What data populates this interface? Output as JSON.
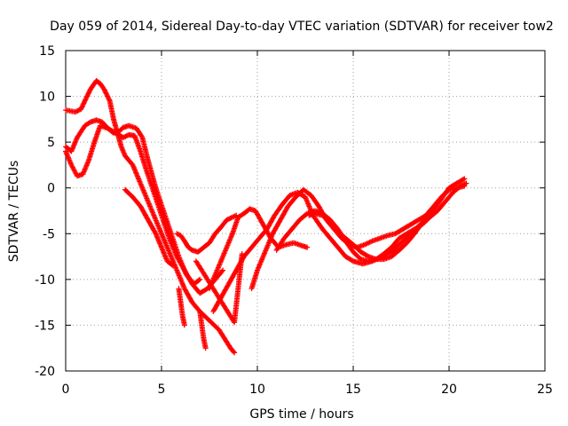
{
  "chart_data": {
    "type": "scatter",
    "title": "Day 059 of 2014, Sidereal Day-to-day VTEC variation (SDTVAR) for receiver tow2",
    "xlabel": "GPS time / hours",
    "ylabel": "SDTVAR / TECUs",
    "xlim": [
      0,
      25
    ],
    "ylim": [
      -20,
      15
    ],
    "xticks": [
      0,
      5,
      10,
      15,
      20,
      25
    ],
    "yticks": [
      15,
      10,
      5,
      0,
      -5,
      -10,
      -15,
      -20
    ],
    "grid": true,
    "marker": "plus",
    "color": "#ff0000",
    "series": [
      {
        "x": [
          0,
          0.5,
          0.8,
          1.0,
          1.3,
          1.6,
          1.8,
          2.0,
          2.3,
          2.5,
          2.7,
          2.9,
          3.1,
          3.5,
          3.8,
          4.2,
          4.6,
          5.0,
          5.4,
          5.8,
          6.2,
          6.6,
          7.0,
          7.5,
          8.0,
          8.3,
          8.6,
          8.8
        ],
        "y": [
          8.5,
          8.3,
          8.6,
          9.5,
          10.8,
          11.7,
          11.4,
          10.8,
          9.5,
          7.5,
          6.0,
          4.5,
          3.5,
          2.5,
          1.0,
          -1.0,
          -3.0,
          -5.0,
          -7.0,
          -9.0,
          -11.0,
          -12.5,
          -13.5,
          -14.5,
          -15.5,
          -16.5,
          -17.5,
          -18.0
        ]
      },
      {
        "x": [
          0,
          0.3,
          0.6,
          1.0,
          1.3,
          1.6,
          1.9,
          2.2,
          2.5,
          2.8,
          3.0,
          3.3,
          3.7,
          4.0,
          4.3,
          4.7,
          5.1,
          5.5,
          5.9,
          6.3,
          6.7,
          7.0
        ],
        "y": [
          4.5,
          4.0,
          5.5,
          6.8,
          7.2,
          7.4,
          7.2,
          6.5,
          6.0,
          6.2,
          6.6,
          6.8,
          6.5,
          5.5,
          3.0,
          0.0,
          -2.5,
          -5.0,
          -7.5,
          -9.5,
          -10.5,
          -10.0
        ]
      },
      {
        "x": [
          0,
          0.3,
          0.6,
          0.9,
          1.2,
          1.5,
          1.8,
          2.2,
          2.6,
          3.0,
          3.3,
          3.6,
          3.9,
          4.2,
          4.6,
          5.0,
          5.4,
          5.8,
          6.2,
          6.6,
          7.0,
          7.4,
          7.8,
          8.2
        ],
        "y": [
          4.0,
          2.5,
          1.3,
          1.5,
          3.0,
          5.0,
          6.8,
          6.5,
          6.0,
          5.5,
          5.8,
          5.7,
          4.0,
          2.0,
          -0.5,
          -3.0,
          -5.5,
          -7.5,
          -9.0,
          -10.5,
          -11.5,
          -11.0,
          -10.0,
          -9.0
        ]
      },
      {
        "x": [
          3.1,
          3.5,
          3.9,
          4.3,
          4.7,
          5.0,
          5.3,
          5.6
        ],
        "y": [
          -0.2,
          -1.0,
          -2.0,
          -3.5,
          -5.0,
          -6.5,
          -8.0,
          -8.5
        ]
      },
      {
        "x": [
          5.8,
          6.0,
          6.2,
          6.4,
          6.6,
          6.9,
          7.2,
          7.5,
          7.8,
          8.1,
          8.4,
          8.7,
          8.9
        ],
        "y": [
          -5.0,
          -5.2,
          -5.8,
          -6.5,
          -6.8,
          -7.0,
          -6.5,
          -6.0,
          -5.0,
          -4.3,
          -3.5,
          -3.2,
          -3.0
        ]
      },
      {
        "x": [
          5.9,
          6.0,
          6.1,
          6.2
        ],
        "y": [
          -11.0,
          -12.5,
          -14.0,
          -15.0
        ]
      },
      {
        "x": [
          7.0,
          7.1,
          7.2,
          7.3
        ],
        "y": [
          -13.5,
          -15.0,
          -16.5,
          -17.5
        ]
      },
      {
        "x": [
          7.5,
          7.9,
          8.3,
          8.7,
          9.0,
          9.3,
          9.6,
          9.9,
          10.3,
          10.7,
          11.1,
          11.5,
          11.9,
          12.3,
          12.6
        ],
        "y": [
          -11.0,
          -9.0,
          -7.0,
          -5.0,
          -3.2,
          -2.8,
          -2.3,
          -2.5,
          -4.0,
          -5.5,
          -6.5,
          -6.2,
          -6.0,
          -6.3,
          -6.5
        ]
      },
      {
        "x": [
          7.7,
          8.1,
          8.5,
          8.9,
          9.3,
          9.7,
          10.1,
          10.5,
          10.9,
          11.3,
          11.7,
          12.1,
          12.5,
          12.9,
          13.4,
          13.8,
          14.2,
          14.6,
          15.0,
          15.5,
          16.0,
          16.5,
          17.0,
          17.5,
          18.0,
          18.5,
          19.0,
          19.5,
          20.0,
          20.4,
          20.8
        ],
        "y": [
          -13.5,
          -12.0,
          -10.5,
          -9.0,
          -7.5,
          -6.5,
          -5.5,
          -4.5,
          -3.0,
          -1.8,
          -0.8,
          -0.5,
          -1.0,
          -3.0,
          -4.5,
          -5.5,
          -6.5,
          -7.5,
          -8.0,
          -8.3,
          -8.0,
          -7.5,
          -7.0,
          -6.0,
          -5.0,
          -4.0,
          -3.0,
          -1.5,
          0.0,
          0.5,
          1.0
        ]
      },
      {
        "x": [
          9.7,
          10.0,
          10.4,
          10.8,
          11.2,
          11.6,
          12.0,
          12.4,
          12.8,
          13.2,
          13.6,
          14.0,
          14.4,
          14.8,
          15.2,
          15.6,
          16.0,
          16.4,
          16.8,
          17.2,
          17.6,
          18.0,
          18.4,
          18.8,
          19.2,
          19.6,
          20.0,
          20.4,
          20.8
        ],
        "y": [
          -11.0,
          -9.0,
          -7.0,
          -5.0,
          -3.5,
          -2.0,
          -1.0,
          -0.2,
          -0.8,
          -2.0,
          -3.5,
          -4.5,
          -5.5,
          -6.2,
          -6.5,
          -6.2,
          -5.8,
          -5.5,
          -5.2,
          -5.0,
          -4.5,
          -4.0,
          -3.5,
          -3.0,
          -2.0,
          -1.0,
          -0.2,
          0.0,
          0.2
        ]
      },
      {
        "x": [
          11.0,
          11.4,
          11.8,
          12.2,
          12.6,
          13.0,
          13.4,
          13.8,
          14.2,
          14.6,
          15.0,
          15.4,
          15.8,
          16.2,
          16.6,
          17.0,
          17.4,
          17.8,
          18.2,
          18.6,
          19.0,
          19.4,
          19.8,
          20.2,
          20.6,
          20.9
        ],
        "y": [
          -6.8,
          -5.5,
          -4.5,
          -3.5,
          -2.8,
          -2.5,
          -2.8,
          -3.5,
          -4.5,
          -5.8,
          -7.0,
          -7.8,
          -8.0,
          -7.8,
          -7.2,
          -6.5,
          -5.5,
          -5.0,
          -4.5,
          -4.0,
          -3.2,
          -2.5,
          -1.5,
          -0.5,
          0.2,
          0.5
        ]
      },
      {
        "x": [
          12.7,
          13.0,
          13.4,
          13.8,
          14.2,
          14.6,
          15.0,
          15.4,
          15.8,
          16.2,
          16.6,
          17.0,
          17.4,
          17.8,
          18.2,
          18.6,
          19.0
        ],
        "y": [
          -3.0,
          -2.8,
          -3.0,
          -3.8,
          -4.8,
          -5.5,
          -6.2,
          -7.0,
          -7.5,
          -7.8,
          -7.8,
          -7.5,
          -6.8,
          -6.0,
          -5.0,
          -3.8,
          -2.5
        ]
      },
      {
        "x": [
          6.8,
          8.8,
          9.2
        ],
        "y": [
          -8.0,
          -14.7,
          -7.2
        ]
      }
    ]
  }
}
